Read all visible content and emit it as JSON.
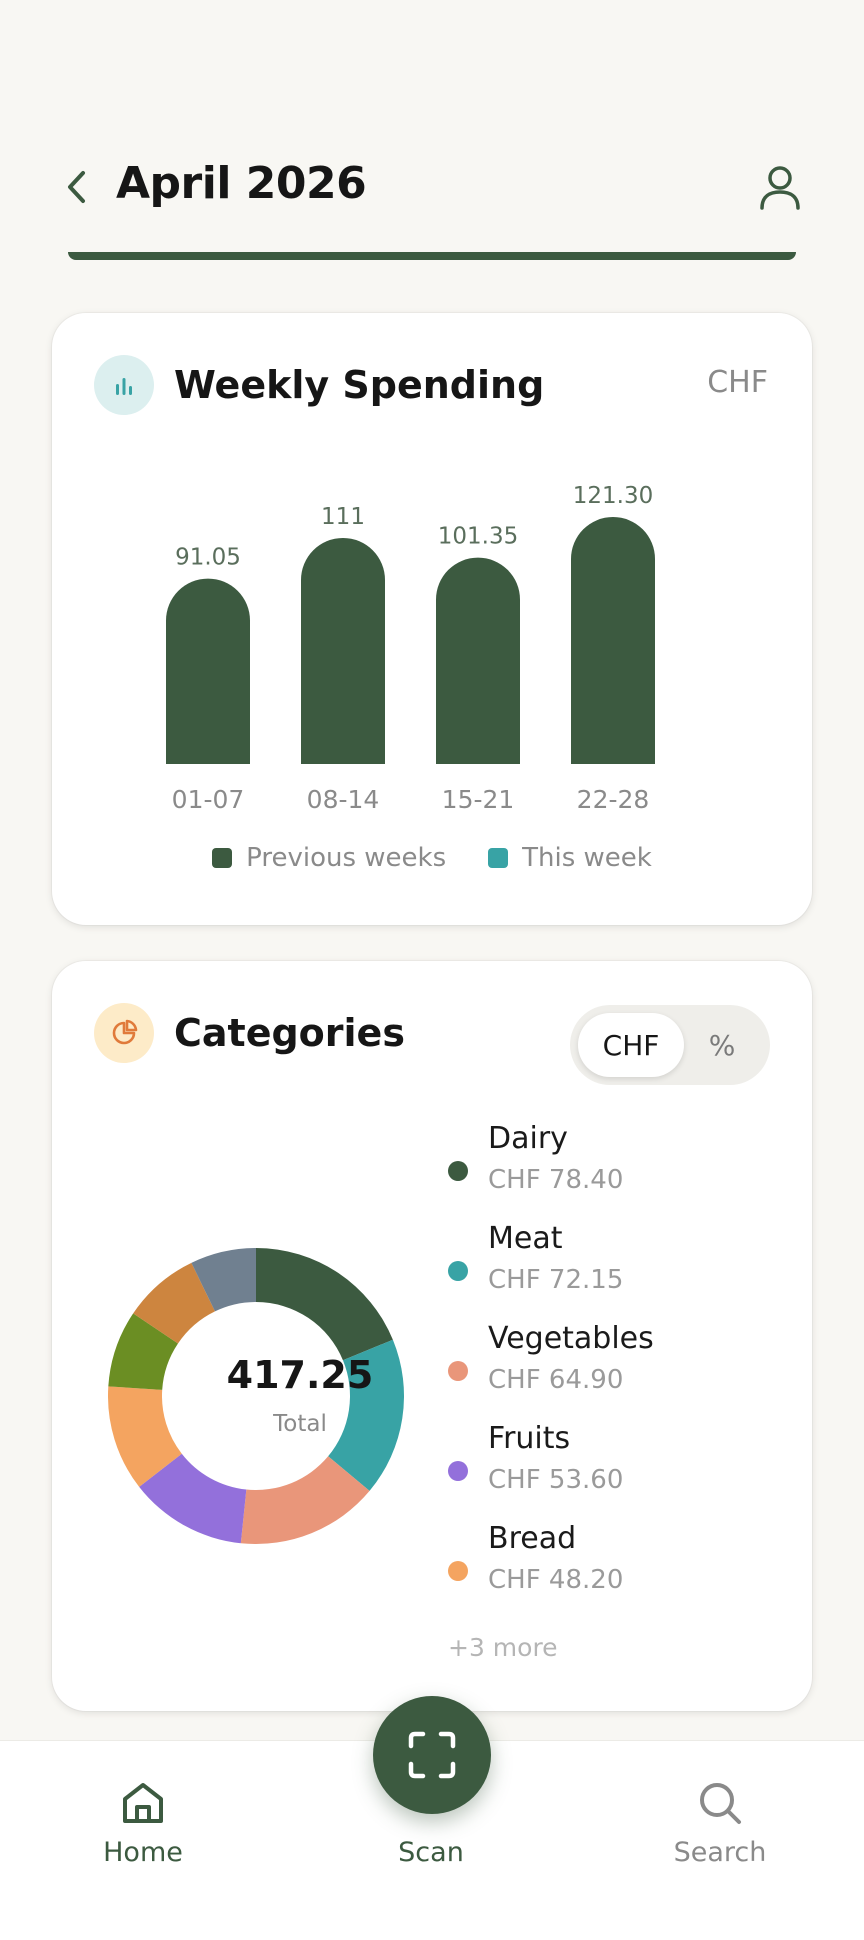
{
  "header": {
    "title": "April 2026",
    "back_icon": "chevron-left-icon",
    "profile_icon": "user-icon"
  },
  "weekly_spending": {
    "title": "Weekly Spending",
    "currency": "CHF",
    "legend": [
      "Previous weeks",
      "This week"
    ],
    "colors": {
      "previous": "#3c5a40",
      "this_week": "#38a3a5"
    },
    "chart_data": {
      "type": "bar",
      "categories": [
        "01-07",
        "08-14",
        "15-21",
        "22-28"
      ],
      "values": [
        91.05,
        111,
        101.35,
        121.3
      ],
      "value_labels": [
        "91.05",
        "111",
        "101.35",
        "121.30"
      ],
      "ylim": [
        0,
        121.3
      ]
    }
  },
  "categories": {
    "title": "Categories",
    "toggle": {
      "active": "CHF",
      "inactive": "%"
    },
    "total_value": "417.25",
    "total_label": "Total",
    "items": [
      {
        "name": "Dairy",
        "amount": "CHF 78.40",
        "color": "#3c5a40"
      },
      {
        "name": "Meat",
        "amount": "CHF 72.15",
        "color": "#38a3a5"
      },
      {
        "name": "Vegetables",
        "amount": "CHF 64.90",
        "color": "#e9967a"
      },
      {
        "name": "Fruits",
        "amount": "CHF 53.60",
        "color": "#9370db"
      },
      {
        "name": "Bread",
        "amount": "CHF 48.20",
        "color": "#f4a460"
      }
    ],
    "more": "+3 more",
    "chart_data": {
      "type": "pie",
      "total": 417.25,
      "slices": [
        {
          "value": 78.4,
          "color": "#3c5a40"
        },
        {
          "value": 72.15,
          "color": "#38a3a5"
        },
        {
          "value": 64.9,
          "color": "#e9967a"
        },
        {
          "value": 53.6,
          "color": "#9370db"
        },
        {
          "value": 48.2,
          "color": "#f4a460"
        },
        {
          "value": 35.0,
          "color": "#6b8e23"
        },
        {
          "value": 35.0,
          "color": "#cd853f"
        },
        {
          "value": 30.0,
          "color": "#708090"
        }
      ]
    }
  },
  "nav": {
    "home": "Home",
    "scan": "Scan",
    "search": "Search"
  }
}
